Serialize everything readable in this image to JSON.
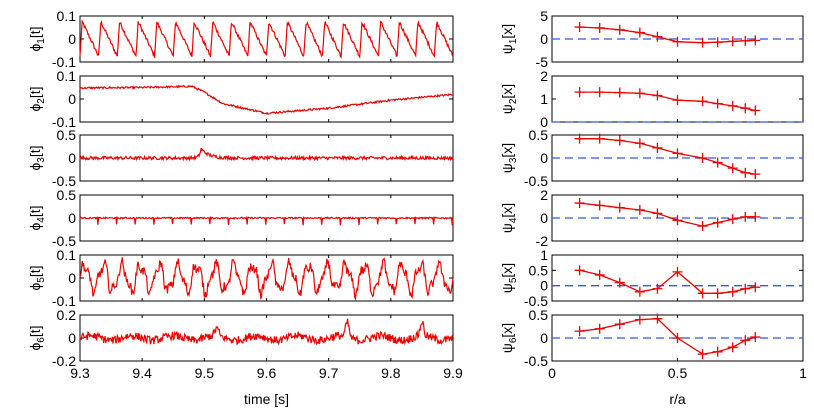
{
  "chart_data": [
    {
      "type": "line",
      "panel": "time-traces",
      "xlabel": "time [s]",
      "xlim": [
        9.3,
        9.9
      ],
      "xticks": [
        9.3,
        9.4,
        9.5,
        9.6,
        9.7,
        9.8,
        9.9
      ],
      "xtick_labels": [
        "9.3",
        "9.4",
        "9.5",
        "9.6",
        "9.7",
        "9.8",
        "9.9"
      ],
      "line_color": "#ee0000",
      "series": [
        {
          "ylabel_base": "ϕ",
          "ylabel_sub": "1",
          "ylabel_suffix": "[t]",
          "ylim": [
            -0.1,
            0.1
          ],
          "yticks": [
            -0.1,
            0,
            0.1
          ],
          "ytick_labels": [
            "-0.1",
            "0",
            "0.1"
          ],
          "description": "periodic sawtooth, 20 cycles",
          "pattern": "sawtooth",
          "amplitude": 0.075,
          "cycles": 20,
          "noise": 0.008
        },
        {
          "ylabel_base": "ϕ",
          "ylabel_sub": "2",
          "ylabel_suffix": "[t]",
          "ylim": [
            -0.1,
            0.1
          ],
          "yticks": [
            -0.1,
            0,
            0.1
          ],
          "ytick_labels": [
            "-0.1",
            "0",
            "0.1"
          ],
          "description": "level ~0.05 until 9.49 s, drop to ~-0.06 at 9.6 s, slow recovery to ~0.02",
          "pattern": "path",
          "points": [
            [
              9.3,
              0.048
            ],
            [
              9.4,
              0.05
            ],
            [
              9.48,
              0.055
            ],
            [
              9.5,
              0.03
            ],
            [
              9.53,
              -0.02
            ],
            [
              9.6,
              -0.062
            ],
            [
              9.7,
              -0.04
            ],
            [
              9.8,
              -0.005
            ],
            [
              9.9,
              0.02
            ]
          ],
          "noise": 0.004
        },
        {
          "ylabel_base": "ϕ",
          "ylabel_sub": "3",
          "ylabel_suffix": "[t]",
          "ylim": [
            -0.5,
            0.5
          ],
          "yticks": [
            -0.5,
            0,
            0.5
          ],
          "ytick_labels": [
            "-0.5",
            "0",
            "0.5"
          ],
          "description": "noise near zero with bump ~0.2 at 9.495 s",
          "pattern": "bump",
          "bump_t": 9.495,
          "bump_height": 0.2,
          "noise": 0.035
        },
        {
          "ylabel_base": "ϕ",
          "ylabel_sub": "4",
          "ylabel_suffix": "[t]",
          "ylim": [
            -0.5,
            0.5
          ],
          "yticks": [
            -0.5,
            0,
            0.5
          ],
          "ytick_labels": [
            "-0.5",
            "0",
            "0.5"
          ],
          "description": "flat with periodic negative spikes ~-0.15, 20 cycles",
          "pattern": "spikes",
          "cycles": 20,
          "spike_height": -0.16,
          "noise": 0.015
        },
        {
          "ylabel_base": "ϕ",
          "ylabel_sub": "5",
          "ylabel_suffix": "[t]",
          "ylim": [
            -0.1,
            0.1
          ],
          "yticks": [
            -0.1,
            0,
            0.1
          ],
          "ytick_labels": [
            "-0.1",
            "0",
            "0.1"
          ],
          "description": "quasi-periodic oscillation amplitude ~0.06",
          "pattern": "oscillation",
          "amplitude": 0.055,
          "cycles": 20,
          "noise": 0.02
        },
        {
          "ylabel_base": "ϕ",
          "ylabel_sub": "6",
          "ylabel_suffix": "[t]",
          "ylim": [
            -0.2,
            0.2
          ],
          "yticks": [
            -0.2,
            0,
            0.2
          ],
          "ytick_labels": [
            "-0.2",
            "0",
            "0.2"
          ],
          "description": "noisy fluctuation near zero with spikes ~0.12 at 9.73 s and 9.85 s",
          "pattern": "noise_spikes",
          "spikes": [
            [
              9.73,
              0.13
            ],
            [
              9.85,
              0.12
            ],
            [
              9.52,
              0.07
            ]
          ],
          "noise": 0.035
        }
      ]
    },
    {
      "type": "line",
      "panel": "spatial-profiles",
      "xlabel": "r/a",
      "xlim": [
        0,
        1
      ],
      "xticks": [
        0,
        0.5,
        1
      ],
      "xtick_labels": [
        "0",
        "0.5",
        "1"
      ],
      "line_color": "#ee0000",
      "zero_line_color": "#3355ee",
      "marker": "+",
      "x": [
        0.11,
        0.19,
        0.27,
        0.35,
        0.42,
        0.5,
        0.6,
        0.66,
        0.72,
        0.77,
        0.81
      ],
      "series": [
        {
          "ylabel_base": "ψ",
          "ylabel_sub": "1",
          "ylabel_suffix": "[x]",
          "ylim": [
            -5,
            5
          ],
          "yticks": [
            -5,
            0,
            5
          ],
          "ytick_labels": [
            "-5",
            "0",
            "5"
          ],
          "values": [
            2.6,
            2.4,
            2.0,
            1.4,
            0.5,
            -0.6,
            -0.8,
            -0.7,
            -0.5,
            -0.4,
            -0.3
          ]
        },
        {
          "ylabel_base": "ψ",
          "ylabel_sub": "2",
          "ylabel_suffix": "[x]",
          "ylim": [
            0,
            2
          ],
          "yticks": [
            0,
            1,
            2
          ],
          "ytick_labels": [
            "0",
            "1",
            "2"
          ],
          "values": [
            1.3,
            1.3,
            1.28,
            1.25,
            1.15,
            0.95,
            0.9,
            0.8,
            0.7,
            0.6,
            0.5
          ]
        },
        {
          "ylabel_base": "ψ",
          "ylabel_sub": "3",
          "ylabel_suffix": "[x]",
          "ylim": [
            -0.5,
            0.5
          ],
          "yticks": [
            -0.5,
            0,
            0.5
          ],
          "ytick_labels": [
            "-0.5",
            "0",
            "0.5"
          ],
          "values": [
            0.42,
            0.42,
            0.38,
            0.32,
            0.22,
            0.1,
            0.0,
            -0.1,
            -0.22,
            -0.32,
            -0.35
          ]
        },
        {
          "ylabel_base": "ψ",
          "ylabel_sub": "4",
          "ylabel_suffix": "[x]",
          "ylim": [
            -2,
            2
          ],
          "yticks": [
            -2,
            0,
            2
          ],
          "ytick_labels": [
            "-2",
            "0",
            "2"
          ],
          "values": [
            1.3,
            1.1,
            0.9,
            0.7,
            0.4,
            -0.2,
            -0.7,
            -0.4,
            -0.1,
            0.1,
            0.1
          ]
        },
        {
          "ylabel_base": "ψ",
          "ylabel_sub": "5",
          "ylabel_suffix": "[x]",
          "ylim": [
            -0.5,
            1
          ],
          "yticks": [
            -0.5,
            0,
            0.5,
            1
          ],
          "ytick_labels": [
            "-0.5",
            "0",
            "0.5",
            "1"
          ],
          "values": [
            0.5,
            0.35,
            0.1,
            -0.2,
            -0.1,
            0.45,
            -0.25,
            -0.25,
            -0.2,
            -0.1,
            -0.05
          ]
        },
        {
          "ylabel_base": "ψ",
          "ylabel_sub": "6",
          "ylabel_suffix": "[x]",
          "ylim": [
            -0.5,
            0.5
          ],
          "yticks": [
            -0.5,
            0,
            0.5
          ],
          "ytick_labels": [
            "-0.5",
            "0",
            "0.5"
          ],
          "values": [
            0.15,
            0.2,
            0.3,
            0.4,
            0.42,
            0.0,
            -0.35,
            -0.3,
            -0.2,
            -0.05,
            0.02
          ]
        }
      ]
    }
  ]
}
